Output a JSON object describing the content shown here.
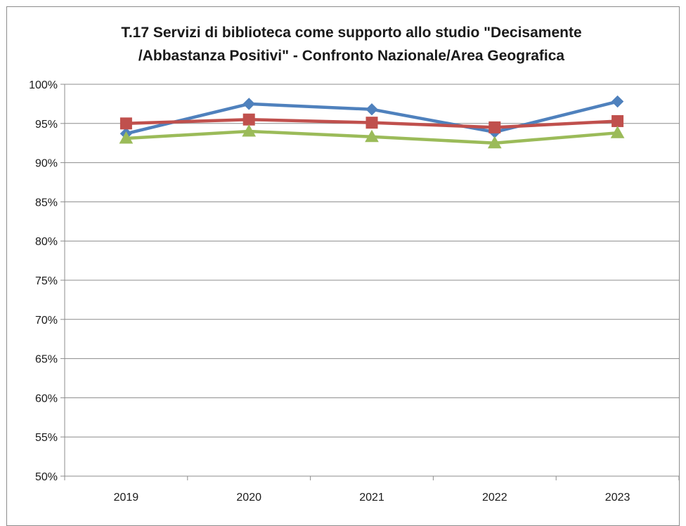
{
  "chart_data": {
    "type": "line",
    "title_lines": [
      "T.17 Servizi di biblioteca come supporto allo studio \"Decisamente",
      "/Abbastanza Positivi\" - Confronto Nazionale/Area Geografica"
    ],
    "categories": [
      "2019",
      "2020",
      "2021",
      "2022",
      "2023"
    ],
    "ylim": [
      0.5,
      1.0
    ],
    "yticks": [
      {
        "value": 1.0,
        "label": "100%"
      },
      {
        "value": 0.95,
        "label": "95%"
      },
      {
        "value": 0.9,
        "label": "90%"
      },
      {
        "value": 0.85,
        "label": "85%"
      },
      {
        "value": 0.8,
        "label": "80%"
      },
      {
        "value": 0.75,
        "label": "75%"
      },
      {
        "value": 0.7,
        "label": "70%"
      },
      {
        "value": 0.65,
        "label": "65%"
      },
      {
        "value": 0.6,
        "label": "60%"
      },
      {
        "value": 0.55,
        "label": "55%"
      },
      {
        "value": 0.5,
        "label": "50%"
      }
    ],
    "grid": true,
    "legend": "none",
    "series": [
      {
        "color": "#4f81bd",
        "marker": "diamond",
        "values": [
          0.937,
          0.975,
          0.968,
          0.939,
          0.978
        ]
      },
      {
        "color": "#c0504d",
        "marker": "square",
        "values": [
          0.95,
          0.955,
          0.951,
          0.945,
          0.953
        ]
      },
      {
        "color": "#9bbb59",
        "marker": "triangle",
        "values": [
          0.931,
          0.94,
          0.933,
          0.925,
          0.938
        ]
      }
    ]
  }
}
